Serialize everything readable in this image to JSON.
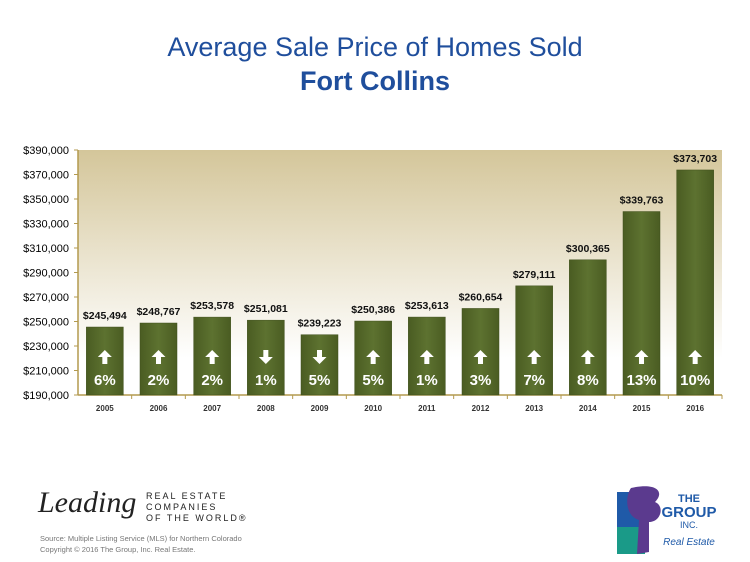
{
  "title": "Average Sale Price of Homes Sold",
  "subtitle": "Fort Collins",
  "chart_data": {
    "type": "bar",
    "categories": [
      "2005",
      "2006",
      "2007",
      "2008",
      "2009",
      "2010",
      "2011",
      "2012",
      "2013",
      "2014",
      "2015",
      "2016"
    ],
    "values": [
      245494,
      248767,
      253578,
      251081,
      239223,
      250386,
      253613,
      260654,
      279111,
      300365,
      339763,
      373703
    ],
    "value_labels": [
      "$245,494",
      "$248,767",
      "$253,578",
      "$251,081",
      "$239,223",
      "$250,386",
      "$253,613",
      "$260,654",
      "$279,111",
      "$300,365",
      "$339,763",
      "$373,703"
    ],
    "change_pct": [
      "6%",
      "2%",
      "2%",
      "1%",
      "5%",
      "5%",
      "1%",
      "3%",
      "7%",
      "8%",
      "13%",
      "10%"
    ],
    "change_direction": [
      "up",
      "up",
      "up",
      "down",
      "down",
      "up",
      "up",
      "up",
      "up",
      "up",
      "up",
      "up"
    ],
    "ylim": [
      190000,
      390000
    ],
    "yticks": [
      "$190,000",
      "$210,000",
      "$230,000",
      "$250,000",
      "$270,000",
      "$290,000",
      "$310,000",
      "$330,000",
      "$350,000",
      "$370,000",
      "$390,000"
    ],
    "ytick_values": [
      190000,
      210000,
      230000,
      250000,
      270000,
      290000,
      310000,
      330000,
      350000,
      370000,
      390000
    ],
    "grid": false,
    "colors": {
      "bar": "#56692b",
      "background_top": "#d4c69a",
      "background_bottom": "#ffffff",
      "axis": "#b39a4f"
    }
  },
  "footer": {
    "leading_script": "Leading",
    "leading_text": [
      "REAL ESTATE",
      "COMPANIES",
      "OF THE WORLD®"
    ],
    "source": "Source: Multiple Listing Service (MLS) for Northern Colorado",
    "copyright": "Copyright © 2016 The Group, Inc. Real Estate.",
    "group_logo": {
      "line1": "THE",
      "line2": "GROUP",
      "line3": "INC.",
      "line4": "Real Estate"
    }
  }
}
